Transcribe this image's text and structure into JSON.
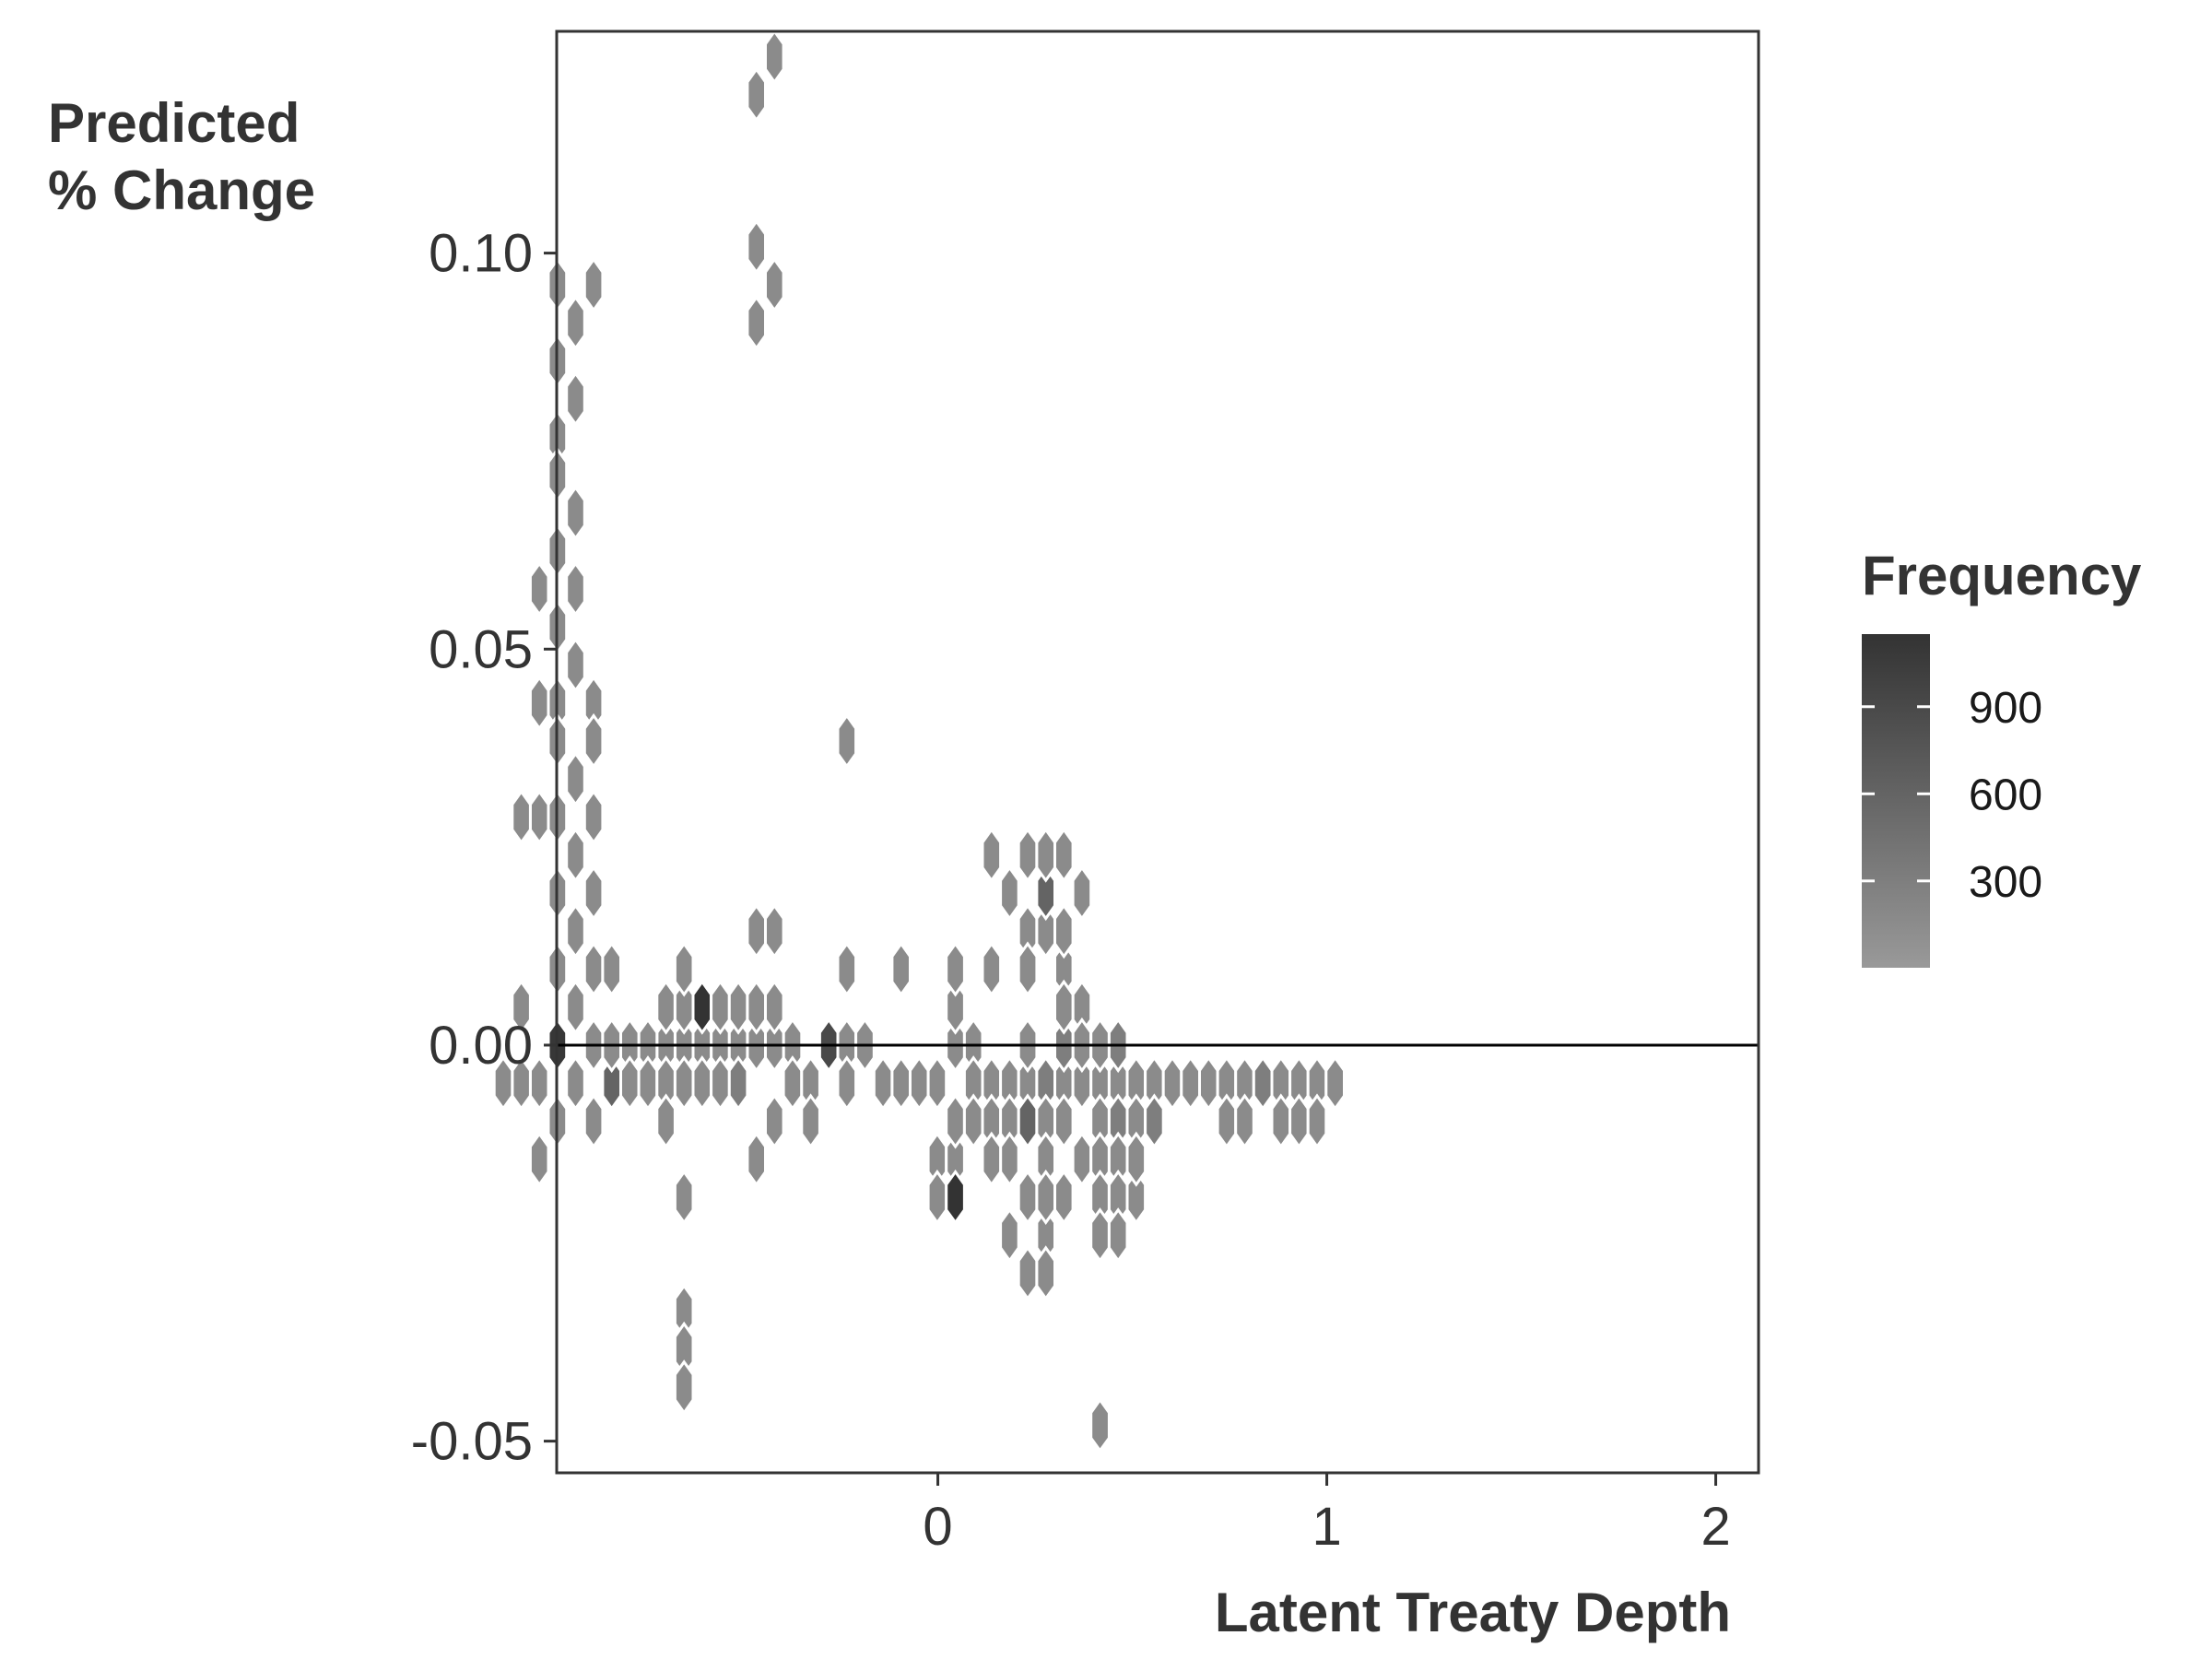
{
  "chart_data": {
    "type": "heatmap",
    "subtype": "hexbin",
    "title": "",
    "xlabel": "Latent Treaty Depth",
    "ylabel": [
      "Predicted",
      "% Change"
    ],
    "xlim": [
      -0.98,
      2.11
    ],
    "ylim": [
      -0.054,
      0.128
    ],
    "x_ticks": [
      0,
      1,
      2
    ],
    "x_tick_labels": [
      "0",
      "1",
      "2"
    ],
    "y_ticks": [
      -0.05,
      0,
      0.05,
      0.1
    ],
    "y_tick_labels": [
      "-0.05",
      "0.00",
      "0.05",
      "0.10"
    ],
    "reference_line": {
      "y": 0
    },
    "grid": false,
    "legend": {
      "title": "Frequency",
      "placement": "right",
      "breaks": [
        300,
        600,
        900
      ],
      "break_labels": [
        "300",
        "600",
        "900"
      ],
      "range": [
        1,
        1150
      ],
      "color_low": "#999999",
      "color_high": "#333333"
    },
    "bin_grid": {
      "x0": -0.792,
      "dx": 0.0465,
      "y0": 0.0,
      "dy": 0.0048
    },
    "bins": [
      [
        -4,
        20,
        160
      ],
      [
        -2,
        20,
        160
      ],
      [
        -3,
        19,
        160
      ],
      [
        -4,
        18,
        160
      ],
      [
        -3,
        17,
        160
      ],
      [
        -4,
        16,
        160
      ],
      [
        -4,
        15,
        160
      ],
      [
        -3,
        14,
        160
      ],
      [
        -4,
        13,
        160
      ],
      [
        -3,
        12,
        160
      ],
      [
        -4,
        11,
        160
      ],
      [
        -3,
        10,
        160
      ],
      [
        -4,
        9,
        160
      ],
      [
        -2,
        9,
        160
      ],
      [
        -4,
        8,
        160
      ],
      [
        -2,
        8,
        160
      ],
      [
        -3,
        7,
        160
      ],
      [
        -4,
        6,
        160
      ],
      [
        -2,
        6,
        160
      ],
      [
        -3,
        5,
        160
      ],
      [
        -4,
        4,
        160
      ],
      [
        -2,
        4,
        160
      ],
      [
        -3,
        3,
        160
      ],
      [
        -4,
        2,
        160
      ],
      [
        -2,
        2,
        160
      ],
      [
        -3,
        1,
        160
      ],
      [
        -4,
        0,
        1100
      ],
      [
        -2,
        0,
        160
      ],
      [
        -3,
        -1,
        160
      ],
      [
        -5,
        -1,
        160
      ],
      [
        -1,
        -1,
        600
      ],
      [
        -4,
        -2,
        160
      ],
      [
        -2,
        -2,
        160
      ],
      [
        -5,
        12,
        160
      ],
      [
        -5,
        9,
        160
      ],
      [
        -5,
        6,
        160
      ],
      [
        -6,
        6,
        160
      ],
      [
        -6,
        1,
        160
      ],
      [
        -6,
        -1,
        160
      ],
      [
        -7,
        -1,
        160
      ],
      [
        -5,
        -3,
        160
      ],
      [
        8,
        26,
        160
      ],
      [
        7,
        25,
        160
      ],
      [
        7,
        21,
        160
      ],
      [
        8,
        20,
        160
      ],
      [
        7,
        19,
        160
      ],
      [
        9,
        0,
        160
      ],
      [
        8,
        0,
        160
      ],
      [
        7,
        0,
        160
      ],
      [
        9,
        -1,
        160
      ],
      [
        10,
        -1,
        160
      ],
      [
        10,
        -2,
        160
      ],
      [
        8,
        -2,
        160
      ],
      [
        7,
        -3,
        160
      ],
      [
        5,
        0,
        160
      ],
      [
        6,
        0,
        160
      ],
      [
        4,
        0,
        160
      ],
      [
        3,
        0,
        160
      ],
      [
        2,
        0,
        160
      ],
      [
        1,
        0,
        160
      ],
      [
        0,
        0,
        160
      ],
      [
        -1,
        0,
        160
      ],
      [
        0,
        -1,
        160
      ],
      [
        1,
        -1,
        160
      ],
      [
        2,
        -1,
        160
      ],
      [
        3,
        -1,
        160
      ],
      [
        4,
        -1,
        160
      ],
      [
        5,
        -1,
        160
      ],
      [
        6,
        -1,
        300
      ],
      [
        2,
        1,
        160
      ],
      [
        3,
        1,
        160
      ],
      [
        4,
        1,
        1150
      ],
      [
        5,
        1,
        160
      ],
      [
        6,
        1,
        160
      ],
      [
        7,
        1,
        160
      ],
      [
        8,
        1,
        160
      ],
      [
        3,
        2,
        160
      ],
      [
        8,
        3,
        160
      ],
      [
        7,
        3,
        160
      ],
      [
        -1,
        2,
        160
      ],
      [
        2,
        -2,
        160
      ],
      [
        3,
        -4,
        160
      ],
      [
        3,
        -7,
        160
      ],
      [
        3,
        -8,
        160
      ],
      [
        3,
        -9,
        160
      ],
      [
        11,
        0,
        900
      ],
      [
        12,
        0,
        160
      ],
      [
        13,
        0,
        160
      ],
      [
        12,
        -1,
        160
      ],
      [
        14,
        -1,
        160
      ],
      [
        15,
        -1,
        160
      ],
      [
        16,
        -1,
        160
      ],
      [
        17,
        -1,
        160
      ],
      [
        12,
        2,
        160
      ],
      [
        12,
        8,
        160
      ],
      [
        15,
        2,
        160
      ],
      [
        17,
        -3,
        160
      ],
      [
        18,
        -3,
        160
      ],
      [
        18,
        -2,
        160
      ],
      [
        17,
        -4,
        160
      ],
      [
        18,
        -4,
        1150
      ],
      [
        18,
        0,
        160
      ],
      [
        18,
        1,
        160
      ],
      [
        18,
        2,
        160
      ],
      [
        19,
        0,
        160
      ],
      [
        19,
        -1,
        160
      ],
      [
        19,
        -2,
        160
      ],
      [
        20,
        2,
        160
      ],
      [
        20,
        -1,
        160
      ],
      [
        21,
        -1,
        160
      ],
      [
        22,
        -1,
        160
      ],
      [
        23,
        -1,
        300
      ],
      [
        24,
        -1,
        160
      ],
      [
        25,
        -1,
        160
      ],
      [
        20,
        -2,
        160
      ],
      [
        21,
        -2,
        160
      ],
      [
        22,
        -2,
        600
      ],
      [
        23,
        -2,
        160
      ],
      [
        24,
        -2,
        160
      ],
      [
        25,
        -3,
        160
      ],
      [
        21,
        -3,
        160
      ],
      [
        20,
        -3,
        160
      ],
      [
        23,
        -3,
        160
      ],
      [
        22,
        -4,
        160
      ],
      [
        24,
        -4,
        160
      ],
      [
        23,
        -5,
        160
      ],
      [
        21,
        -5,
        160
      ],
      [
        22,
        -6,
        160
      ],
      [
        23,
        -6,
        160
      ],
      [
        23,
        -4,
        160
      ],
      [
        22,
        3,
        160
      ],
      [
        22,
        2,
        160
      ],
      [
        20,
        5,
        160
      ],
      [
        21,
        4,
        160
      ],
      [
        22,
        5,
        160
      ],
      [
        23,
        3,
        160
      ],
      [
        23,
        4,
        600
      ],
      [
        23,
        5,
        160
      ],
      [
        24,
        5,
        160
      ],
      [
        25,
        1,
        160
      ],
      [
        24,
        2,
        160
      ],
      [
        25,
        0,
        160
      ],
      [
        24,
        3,
        160
      ],
      [
        25,
        4,
        160
      ],
      [
        24,
        0,
        300
      ],
      [
        24,
        1,
        160
      ],
      [
        22,
        0,
        160
      ],
      [
        26,
        -1,
        160
      ],
      [
        27,
        -1,
        160
      ],
      [
        28,
        -1,
        160
      ],
      [
        29,
        -1,
        160
      ],
      [
        30,
        -1,
        160
      ],
      [
        31,
        -1,
        160
      ],
      [
        26,
        0,
        160
      ],
      [
        26,
        -2,
        160
      ],
      [
        27,
        -2,
        300
      ],
      [
        26,
        -3,
        160
      ],
      [
        28,
        -2,
        160
      ],
      [
        27,
        -3,
        160
      ],
      [
        26,
        -4,
        160
      ],
      [
        27,
        -4,
        160
      ],
      [
        28,
        -4,
        160
      ],
      [
        26,
        0,
        160
      ],
      [
        27,
        0,
        300
      ],
      [
        26,
        -5,
        160
      ],
      [
        27,
        -5,
        160
      ],
      [
        28,
        -3,
        160
      ],
      [
        29,
        -2,
        300
      ],
      [
        26,
        -10,
        160
      ],
      [
        32,
        -1,
        160
      ],
      [
        33,
        -1,
        160
      ],
      [
        34,
        -1,
        160
      ],
      [
        35,
        -1,
        300
      ],
      [
        36,
        -1,
        160
      ],
      [
        37,
        -1,
        160
      ],
      [
        38,
        -1,
        160
      ],
      [
        39,
        -1,
        160
      ],
      [
        33,
        -2,
        160
      ],
      [
        34,
        -2,
        160
      ],
      [
        36,
        -2,
        160
      ],
      [
        37,
        -2,
        160
      ],
      [
        38,
        -2,
        160
      ]
    ]
  }
}
